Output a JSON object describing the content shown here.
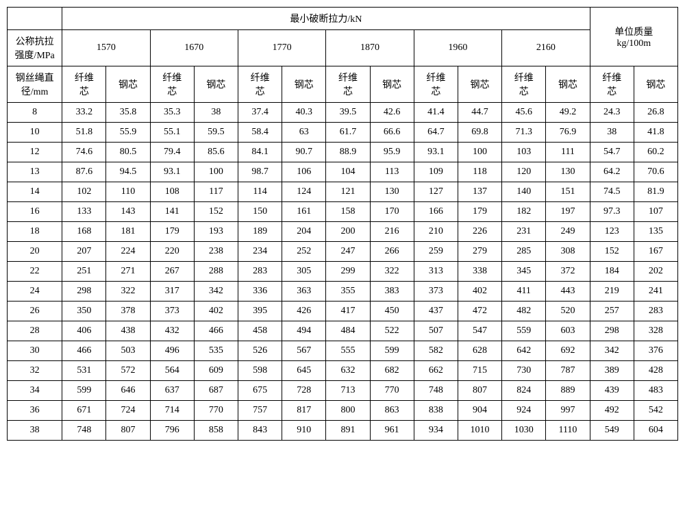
{
  "headers": {
    "main_group": "最小破断拉力/kN",
    "mass_group": "单位质量",
    "mass_unit": "kg/100m",
    "col1_label1": "公称抗拉",
    "col1_label2": "强度/MPa",
    "col1_label3": "钢丝绳直",
    "col1_label4": "径/mm",
    "strengths": [
      "1570",
      "1670",
      "1770",
      "1870",
      "1960",
      "2160"
    ],
    "sub_fiber": "纤维芯",
    "sub_fiber_l1": "纤维",
    "sub_fiber_l2": "芯",
    "sub_steel": "钢芯"
  },
  "rows": [
    {
      "d": "8",
      "v": [
        "33.2",
        "35.8",
        "35.3",
        "38",
        "37.4",
        "40.3",
        "39.5",
        "42.6",
        "41.4",
        "44.7",
        "45.6",
        "49.2",
        "24.3",
        "26.8"
      ]
    },
    {
      "d": "10",
      "v": [
        "51.8",
        "55.9",
        "55.1",
        "59.5",
        "58.4",
        "63",
        "61.7",
        "66.6",
        "64.7",
        "69.8",
        "71.3",
        "76.9",
        "38",
        "41.8"
      ]
    },
    {
      "d": "12",
      "v": [
        "74.6",
        "80.5",
        "79.4",
        "85.6",
        "84.1",
        "90.7",
        "88.9",
        "95.9",
        "93.1",
        "100",
        "103",
        "111",
        "54.7",
        "60.2"
      ]
    },
    {
      "d": "13",
      "v": [
        "87.6",
        "94.5",
        "93.1",
        "100",
        "98.7",
        "106",
        "104",
        "113",
        "109",
        "118",
        "120",
        "130",
        "64.2",
        "70.6"
      ]
    },
    {
      "d": "14",
      "v": [
        "102",
        "110",
        "108",
        "117",
        "114",
        "124",
        "121",
        "130",
        "127",
        "137",
        "140",
        "151",
        "74.5",
        "81.9"
      ]
    },
    {
      "d": "16",
      "v": [
        "133",
        "143",
        "141",
        "152",
        "150",
        "161",
        "158",
        "170",
        "166",
        "179",
        "182",
        "197",
        "97.3",
        "107"
      ]
    },
    {
      "d": "18",
      "v": [
        "168",
        "181",
        "179",
        "193",
        "189",
        "204",
        "200",
        "216",
        "210",
        "226",
        "231",
        "249",
        "123",
        "135"
      ]
    },
    {
      "d": "20",
      "v": [
        "207",
        "224",
        "220",
        "238",
        "234",
        "252",
        "247",
        "266",
        "259",
        "279",
        "285",
        "308",
        "152",
        "167"
      ]
    },
    {
      "d": "22",
      "v": [
        "251",
        "271",
        "267",
        "288",
        "283",
        "305",
        "299",
        "322",
        "313",
        "338",
        "345",
        "372",
        "184",
        "202"
      ]
    },
    {
      "d": "24",
      "v": [
        "298",
        "322",
        "317",
        "342",
        "336",
        "363",
        "355",
        "383",
        "373",
        "402",
        "411",
        "443",
        "219",
        "241"
      ]
    },
    {
      "d": "26",
      "v": [
        "350",
        "378",
        "373",
        "402",
        "395",
        "426",
        "417",
        "450",
        "437",
        "472",
        "482",
        "520",
        "257",
        "283"
      ]
    },
    {
      "d": "28",
      "v": [
        "406",
        "438",
        "432",
        "466",
        "458",
        "494",
        "484",
        "522",
        "507",
        "547",
        "559",
        "603",
        "298",
        "328"
      ]
    },
    {
      "d": "30",
      "v": [
        "466",
        "503",
        "496",
        "535",
        "526",
        "567",
        "555",
        "599",
        "582",
        "628",
        "642",
        "692",
        "342",
        "376"
      ]
    },
    {
      "d": "32",
      "v": [
        "531",
        "572",
        "564",
        "609",
        "598",
        "645",
        "632",
        "682",
        "662",
        "715",
        "730",
        "787",
        "389",
        "428"
      ]
    },
    {
      "d": "34",
      "v": [
        "599",
        "646",
        "637",
        "687",
        "675",
        "728",
        "713",
        "770",
        "748",
        "807",
        "824",
        "889",
        "439",
        "483"
      ]
    },
    {
      "d": "36",
      "v": [
        "671",
        "724",
        "714",
        "770",
        "757",
        "817",
        "800",
        "863",
        "838",
        "904",
        "924",
        "997",
        "492",
        "542"
      ]
    },
    {
      "d": "38",
      "v": [
        "748",
        "807",
        "796",
        "858",
        "843",
        "910",
        "891",
        "961",
        "934",
        "1010",
        "1030",
        "1110",
        "549",
        "604"
      ]
    }
  ]
}
